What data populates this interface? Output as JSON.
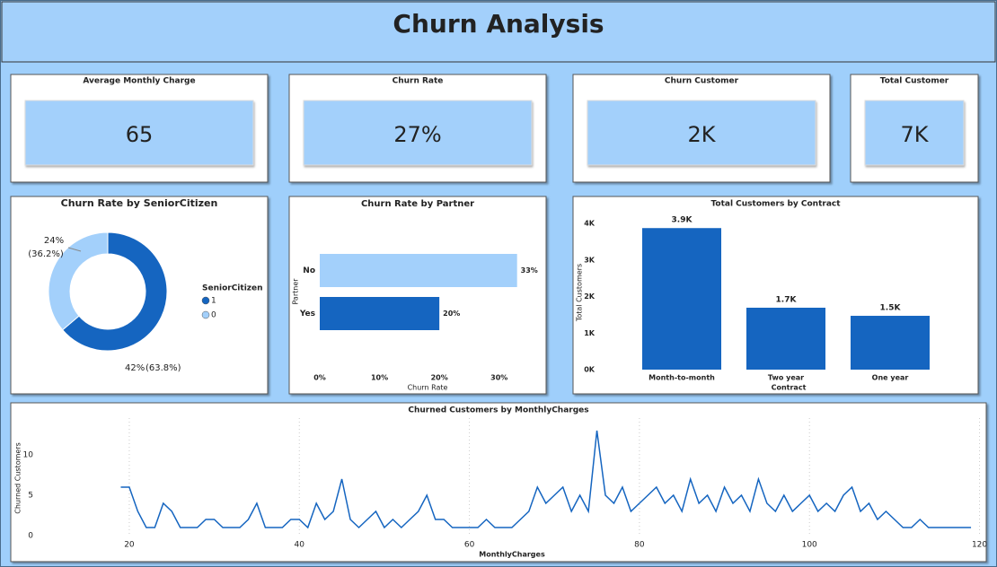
{
  "header": {
    "title": "Churn Analysis"
  },
  "cards": [
    {
      "label": "Average Monthly Charge",
      "value": "65"
    },
    {
      "label": "Churn Rate",
      "value": "27%"
    },
    {
      "label": "Churn Customer",
      "value": "2K"
    },
    {
      "label": "Total Customer",
      "value": "7K"
    }
  ],
  "chart_data": [
    {
      "type": "pie",
      "donut": true,
      "title": "Churn Rate by SeniorCitizen",
      "legend_title": "SeniorCitizen",
      "legend": "right",
      "categories": [
        "1",
        "0"
      ],
      "colors": [
        "#1565c0",
        "#a3d0fb"
      ],
      "values": [
        42,
        24
      ],
      "value_labels": [
        "42%",
        "24%"
      ],
      "shares": [
        63.8,
        36.2
      ],
      "share_labels": [
        "(63.8%)",
        "(36.2%)"
      ]
    },
    {
      "type": "bar",
      "orientation": "horizontal",
      "title": "Churn Rate by Partner",
      "xlabel": "Churn Rate",
      "ylabel": "Partner",
      "categories": [
        "No",
        "Yes"
      ],
      "values": [
        33,
        20
      ],
      "value_labels": [
        "33%",
        "20%"
      ],
      "colors": [
        "#a3d0fb",
        "#1565c0"
      ],
      "xlim": [
        0,
        35
      ],
      "xticks": [
        {
          "value": 0,
          "label": "0%"
        },
        {
          "value": 10,
          "label": "10%"
        },
        {
          "value": 20,
          "label": "20%"
        },
        {
          "value": 30,
          "label": "30%"
        }
      ]
    },
    {
      "type": "bar",
      "orientation": "vertical",
      "title": "Total Customers by Contract",
      "xlabel": "Contract",
      "ylabel": "Total Customers",
      "categories": [
        "Month-to-month",
        "Two year",
        "One year"
      ],
      "values": [
        3875,
        1695,
        1473
      ],
      "value_labels": [
        "3.9K",
        "1.7K",
        "1.5K"
      ],
      "color": "#1565c0",
      "ylim": [
        0,
        4200
      ],
      "yticks": [
        {
          "value": 0,
          "label": "0K"
        },
        {
          "value": 1000,
          "label": "1K"
        },
        {
          "value": 2000,
          "label": "2K"
        },
        {
          "value": 3000,
          "label": "3K"
        },
        {
          "value": 4000,
          "label": "4K"
        }
      ]
    },
    {
      "type": "line",
      "title": "Churned Customers by MonthlyCharges",
      "xlabel": "MonthlyCharges",
      "ylabel": "Churned Customers",
      "color": "#1565c0",
      "grid": true,
      "x": [
        19,
        20,
        21,
        22,
        23,
        24,
        25,
        26,
        27,
        28,
        29,
        30,
        31,
        32,
        33,
        34,
        35,
        36,
        37,
        38,
        39,
        40,
        41,
        42,
        43,
        44,
        45,
        46,
        47,
        48,
        49,
        50,
        51,
        52,
        53,
        54,
        55,
        56,
        57,
        58,
        59,
        60,
        61,
        62,
        63,
        64,
        65,
        66,
        67,
        68,
        69,
        70,
        71,
        72,
        73,
        74,
        75,
        76,
        77,
        78,
        79,
        80,
        81,
        82,
        83,
        84,
        85,
        86,
        87,
        88,
        89,
        90,
        91,
        92,
        93,
        94,
        95,
        96,
        97,
        98,
        99,
        100,
        101,
        102,
        103,
        104,
        105,
        106,
        107,
        108,
        109,
        110,
        111,
        112,
        113,
        114,
        115,
        116,
        117,
        118,
        119
      ],
      "values": [
        6,
        6,
        3,
        1,
        1,
        4,
        3,
        1,
        1,
        1,
        2,
        2,
        1,
        1,
        1,
        2,
        4,
        1,
        1,
        1,
        2,
        2,
        1,
        4,
        2,
        3,
        7,
        2,
        1,
        2,
        3,
        1,
        2,
        1,
        2,
        3,
        5,
        2,
        2,
        1,
        1,
        1,
        1,
        2,
        1,
        1,
        1,
        2,
        3,
        6,
        4,
        5,
        6,
        3,
        5,
        3,
        13,
        5,
        4,
        6,
        3,
        4,
        5,
        6,
        4,
        5,
        3,
        7,
        4,
        5,
        3,
        6,
        4,
        5,
        3,
        7,
        4,
        3,
        5,
        3,
        4,
        5,
        3,
        4,
        3,
        5,
        6,
        3,
        4,
        2,
        3,
        2,
        1,
        1,
        2,
        1,
        1,
        1,
        1,
        1,
        1
      ],
      "xlim": [
        18,
        121
      ],
      "xticks": [
        20,
        40,
        60,
        80,
        100,
        120
      ],
      "ylim": [
        0,
        14
      ],
      "yticks": [
        0,
        5,
        10
      ]
    }
  ]
}
